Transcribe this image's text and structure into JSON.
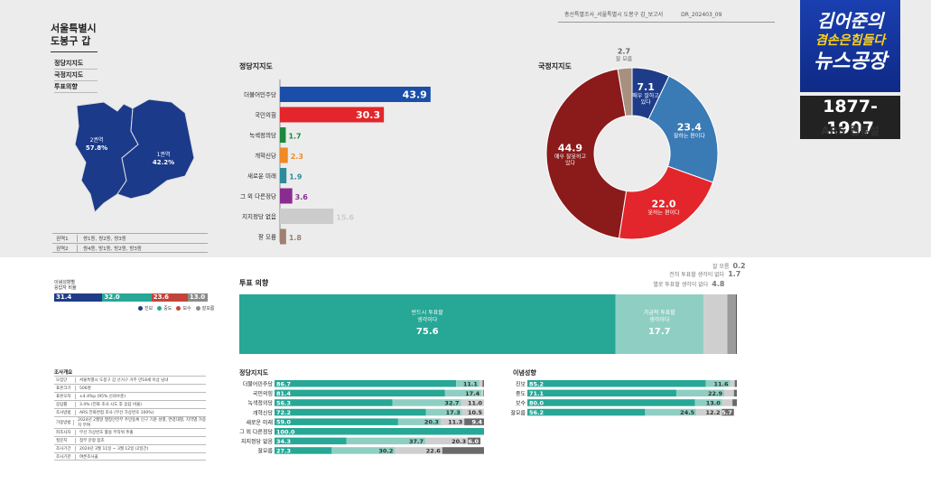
{
  "header": {
    "report": "총선특별조사_서울특별시 도봉구 갑_보고서",
    "code": "DR_202403_09"
  },
  "region": {
    "name_line1": "서울특별시",
    "name_line2": "도봉구 갑",
    "list": [
      "정당지지도",
      "국정지지도",
      "투표의향"
    ],
    "map_labels": [
      {
        "name": "2권역",
        "value": "57.8%"
      },
      {
        "name": "1권역",
        "value": "42.2%"
      }
    ],
    "table": [
      {
        "key": "권역1",
        "value": "쌍1동, 쌍2동, 쌍3동"
      },
      {
        "key": "권역2",
        "value": "쌍4동, 방1동, 방2동, 방3동"
      }
    ]
  },
  "brand": {
    "title_line1": "김어준의",
    "title_line2": "겸손은힘들다",
    "title_line3": "뉴스공장",
    "number": "1877-1907",
    "tagline": "ARS 웹뷰설"
  },
  "ideology_summary": {
    "head_line1": "이념성향별",
    "head_line2": "응답자 비율",
    "segments": [
      {
        "label": "31.4",
        "value": 31.4,
        "color": "#1f3c88"
      },
      {
        "label": "32.0",
        "value": 32.0,
        "color": "#27a796"
      },
      {
        "label": "23.6",
        "value": 23.6,
        "color": "#c2453c"
      },
      {
        "label": "13.0",
        "value": 13.0,
        "color": "#8b8b8b"
      }
    ],
    "legend": [
      "진보",
      "중도",
      "보수",
      "잘모름"
    ]
  },
  "survey": {
    "title": "조사개요",
    "rows": [
      {
        "key": "모집단",
        "value": "서울특별시 도봉구 갑 선거구 거주 만18세 이상 남녀"
      },
      {
        "key": "표본크기",
        "value": "506명"
      },
      {
        "key": "표본오차",
        "value": "±4.4%p (95% 신뢰수준)"
      },
      {
        "key": "응답률",
        "value": "3.4% (전화 조사 시도 후 응답 비율)"
      },
      {
        "key": "조사방법",
        "value": "ARS 전화면접 조사 (무선 가상번호 100%)"
      },
      {
        "key": "가중방법",
        "value": "2024년 2월말 행정안전부 주민등록 인구 기준 성별, 연령대별, 지역별 가중치 부여"
      },
      {
        "key": "피조사자",
        "value": "무선 가상번호 활용 무작위 추출"
      },
      {
        "key": "질문지",
        "value": "첨부 문항 참조"
      },
      {
        "key": "조사기간",
        "value": "2024년 3월 11일 ~ 3월 12일 (2일간)"
      },
      {
        "key": "조사기관",
        "value": "여론조사꽃"
      }
    ]
  },
  "chart_data": [
    {
      "id": "party-support",
      "type": "bar",
      "title": "정당지지도",
      "categories": [
        "더불어민주당",
        "국민의힘",
        "녹색정의당",
        "개혁신당",
        "새로운 미래",
        "그 외 다른정당",
        "지지정당 없음",
        "잘 모름"
      ],
      "values": [
        43.9,
        30.3,
        1.7,
        2.3,
        1.9,
        3.6,
        15.6,
        1.8
      ],
      "colors": [
        "#1b4ea8",
        "#e2262b",
        "#1a8a3a",
        "#f08a24",
        "#2e8b9a",
        "#8a2c8f",
        "#cccccc",
        "#a08070"
      ],
      "xlim": [
        0,
        50
      ]
    },
    {
      "id": "gov-approval",
      "type": "pie",
      "title": "국정지지도",
      "categories": [
        "매우 잘하고 있다",
        "잘하는 편이다",
        "못하는 편이다",
        "매우 잘못하고 있다",
        "잘 모름"
      ],
      "values": [
        7.1,
        23.4,
        22.0,
        44.9,
        2.7
      ],
      "labels": [
        "7.1",
        "23.4",
        "22.0",
        "44.9",
        "2.7"
      ],
      "colors": [
        "#1f3c88",
        "#3a7ab5",
        "#e2262b",
        "#8b1a1a",
        "#a89080"
      ]
    },
    {
      "id": "vote-intent",
      "type": "bar",
      "title": "투표 의향",
      "stacked": true,
      "categories": [
        "반드시 투표할 생각이다",
        "가급적 투표할 생각이다",
        "별로 투표할 생각이 없다",
        "전혀 투표할 생각이 없다",
        "잘 모름"
      ],
      "values": [
        75.6,
        17.7,
        4.8,
        1.7,
        0.2
      ],
      "colors": [
        "#27a796",
        "#8fcfc3",
        "#cfcfcf",
        "#9a9a9a",
        "#555555"
      ]
    },
    {
      "id": "vote-by-party",
      "type": "bar",
      "title": "정당지지도",
      "stacked": true,
      "categories": [
        "더불어민주당",
        "국민의힘",
        "녹색정의당",
        "개혁신당",
        "새로운 미래",
        "그 외 다른정당",
        "지지정당 없음",
        "잘모름"
      ],
      "series": [
        {
          "values": [
            86.7,
            81.4,
            56.3,
            72.2,
            59.0,
            100.0,
            34.3,
            27.3
          ]
        },
        {
          "values": [
            11.1,
            17.4,
            32.7,
            17.3,
            20.3,
            0.0,
            37.7,
            30.2
          ]
        },
        {
          "values": [
            1.5,
            0.9,
            11.0,
            10.5,
            11.3,
            0.0,
            20.3,
            22.6
          ]
        },
        {
          "values": [
            0.7,
            0.3,
            0.0,
            0.0,
            9.4,
            0.0,
            6.0,
            19.9
          ]
        }
      ],
      "value_labels": [
        [
          "86.7",
          "11.1",
          "",
          ""
        ],
        [
          "81.4",
          "17.4",
          "",
          ""
        ],
        [
          "56.3",
          "32.7",
          "11.0",
          ""
        ],
        [
          "72.2",
          "17.3",
          "10.5",
          ""
        ],
        [
          "59.0",
          "20.3",
          "11.3",
          "9.4"
        ],
        [
          "100.0",
          "",
          "",
          ""
        ],
        [
          "34.3",
          "37.7",
          "20.3",
          "6.0"
        ],
        [
          "27.3",
          "30.2",
          "22.6",
          ""
        ]
      ],
      "colors": [
        "#27a796",
        "#8fcfc3",
        "#cfcfcf",
        "#6a6a6a"
      ]
    },
    {
      "id": "vote-by-ideology",
      "type": "bar",
      "title": "이념성향",
      "stacked": true,
      "categories": [
        "진보",
        "중도",
        "보수",
        "잘모름"
      ],
      "series": [
        {
          "values": [
            85.2,
            71.1,
            80.0,
            56.2
          ]
        },
        {
          "values": [
            11.6,
            22.9,
            13.0,
            24.5
          ]
        },
        {
          "values": [
            2.2,
            4.6,
            4.9,
            12.2
          ]
        },
        {
          "values": [
            1.0,
            1.4,
            2.1,
            5.7
          ]
        }
      ],
      "value_labels": [
        [
          "85.2",
          "11.6",
          "",
          ""
        ],
        [
          "71.1",
          "22.9",
          "",
          ""
        ],
        [
          "80.0",
          "13.0",
          "",
          ""
        ],
        [
          "56.2",
          "24.5",
          "12.2",
          "5.7"
        ]
      ],
      "colors": [
        "#27a796",
        "#8fcfc3",
        "#cfcfcf",
        "#6a6a6a"
      ]
    }
  ]
}
